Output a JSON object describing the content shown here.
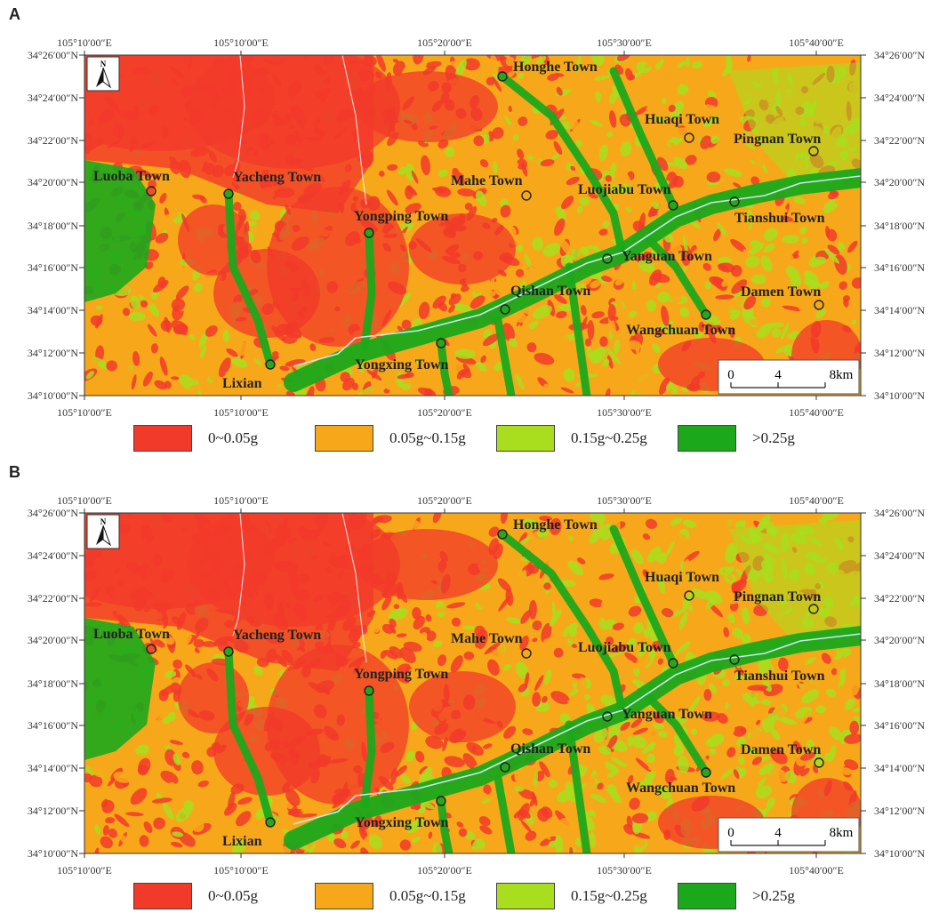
{
  "colors": {
    "class1": "#f23a2a",
    "class2": "#f7a81a",
    "class3": "#a8de1e",
    "class4": "#1ba81b",
    "river": "#c8e8f0",
    "boundary": "#f0f0f0"
  },
  "panels": [
    {
      "letter": "A",
      "top_ticks": [
        "105°10′00″E",
        "105°10′00″E",
        "105°20′00″E",
        "105°30′00″E",
        "105°40′00″E"
      ],
      "bottom_ticks": [
        "105°10′00″E",
        "105°10′00″E",
        "105°20′00″E",
        "105°30′00″E",
        "105°40′00″E"
      ],
      "left_ticks": [
        "34°26′00″N",
        "34°24′00″N",
        "34°22′00″N",
        "34°20′00″N",
        "34°18′00″N",
        "34°16′00″N",
        "34°14′00″N",
        "34°12′00″N",
        "34°10′00″N"
      ],
      "right_ticks": [
        "34°26′00″N",
        "34°24′00″N",
        "34°22′00″N",
        "34°20′00″N",
        "34°18′00″N",
        "34°16′00″N",
        "34°14′00″N",
        "34°12′00″N",
        "34°10′00″N"
      ]
    },
    {
      "letter": "B",
      "top_ticks": [
        "105°10′00″E",
        "105°10′00″E",
        "105°20′00″E",
        "105°30′00″E",
        "105°40′00″E"
      ],
      "bottom_ticks": [
        "105°10′00″E",
        "105°10′00″E",
        "105°20′00″E",
        "105°30′00″E",
        "105°40′00″E"
      ],
      "left_ticks": [
        "34°26′00″N",
        "34°24′00″N",
        "34°22′00″N",
        "34°20′00″N",
        "34°18′00″N",
        "34°16′00″N",
        "34°14′00″N",
        "34°12′00″N",
        "34°10′00″N"
      ],
      "right_ticks": [
        "34°26′00″N",
        "34°24′00″N",
        "34°22′00″N",
        "34°20′00″N",
        "34°18′00″N",
        "34°16′00″N",
        "34°14′00″N",
        "34°12′00″N",
        "34°10′00″N"
      ]
    }
  ],
  "towns": [
    "Honghe Town",
    "Huaqi Town",
    "Pingnan Town",
    "Luoba Town",
    "Yacheng Town",
    "Mahe Town",
    "Luojiabu Town",
    "Tianshui Town",
    "Yongping Town",
    "Yanguan Town",
    "Qishan Town",
    "Damen Town",
    "Wangchuan Town",
    "Yongxing Town",
    "Lixian"
  ],
  "scale_bar": {
    "labels": [
      "0",
      "4",
      "8km"
    ]
  },
  "north_arrow": {
    "label": "N",
    "icon": "north-arrow-icon"
  },
  "legend": {
    "items": [
      {
        "label": "0~0.05g",
        "color": "#f23a2a"
      },
      {
        "label": "0.05g~0.15g",
        "color": "#f7a81a"
      },
      {
        "label": "0.15g~0.25g",
        "color": "#a8de1e"
      },
      {
        "label": ">0.25g",
        "color": "#1ba81b"
      }
    ]
  }
}
